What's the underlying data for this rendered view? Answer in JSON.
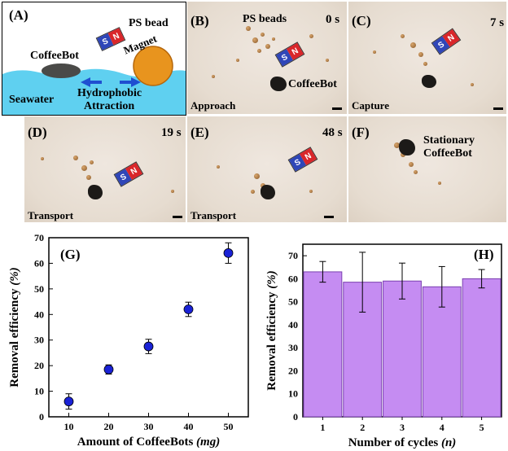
{
  "panelA": {
    "label": "(A)",
    "coffeebot": "CoffeeBot",
    "psbead": "PS bead",
    "magnet_word": "Magnet",
    "seawater": "Seawater",
    "hydrophobic": "Hydrophobic",
    "attraction": "Attraction",
    "mag_s": "S",
    "mag_n": "N"
  },
  "panelB": {
    "label": "(B)",
    "time": "0 s",
    "beads": "PS beads",
    "bot": "CoffeeBot",
    "caption": "Approach"
  },
  "panelC": {
    "label": "(C)",
    "time": "7 s",
    "caption": "Capture"
  },
  "panelD": {
    "label": "(D)",
    "time": "19 s",
    "caption": "Transport"
  },
  "panelE": {
    "label": "(E)",
    "time": "48 s",
    "caption": "Transport"
  },
  "panelF": {
    "label": "(F)",
    "caption1": "Stationary",
    "caption2": "CoffeeBot"
  },
  "colors": {
    "seawater": "#5fd0f0",
    "bead_orange": "#e8941e",
    "marker_blue": "#1a22d6",
    "bar_purple": "#c58cf2",
    "magnet_s": "#2f46b8",
    "magnet_n": "#d9262a"
  },
  "chart_data": [
    {
      "panel": "(G)",
      "type": "scatter",
      "xlabel": "Amount of CoffeeBots (mg)",
      "ylabel": "Removal efficiency (%)",
      "x": [
        10,
        20,
        30,
        40,
        50
      ],
      "y": [
        6,
        18.5,
        27.5,
        42,
        64
      ],
      "err": [
        3,
        1.8,
        2.8,
        2.8,
        4
      ],
      "xlim": [
        5,
        55
      ],
      "ylim": [
        0,
        70
      ],
      "xticks": [
        10,
        20,
        30,
        40,
        50
      ],
      "yticks": [
        0,
        10,
        20,
        30,
        40,
        50,
        60,
        70
      ],
      "grid": false
    },
    {
      "panel": "(H)",
      "type": "bar",
      "xlabel": "Number of cycles (n)",
      "ylabel": "Removal efficiency (%)",
      "categories": [
        "1",
        "2",
        "3",
        "4",
        "5"
      ],
      "values": [
        63,
        58.5,
        59,
        56.5,
        60
      ],
      "err": [
        4.5,
        13,
        7.8,
        8.8,
        4
      ],
      "ylim": [
        0,
        75
      ],
      "yticks": [
        0,
        10,
        20,
        30,
        40,
        50,
        60,
        70
      ],
      "grid": false
    }
  ]
}
